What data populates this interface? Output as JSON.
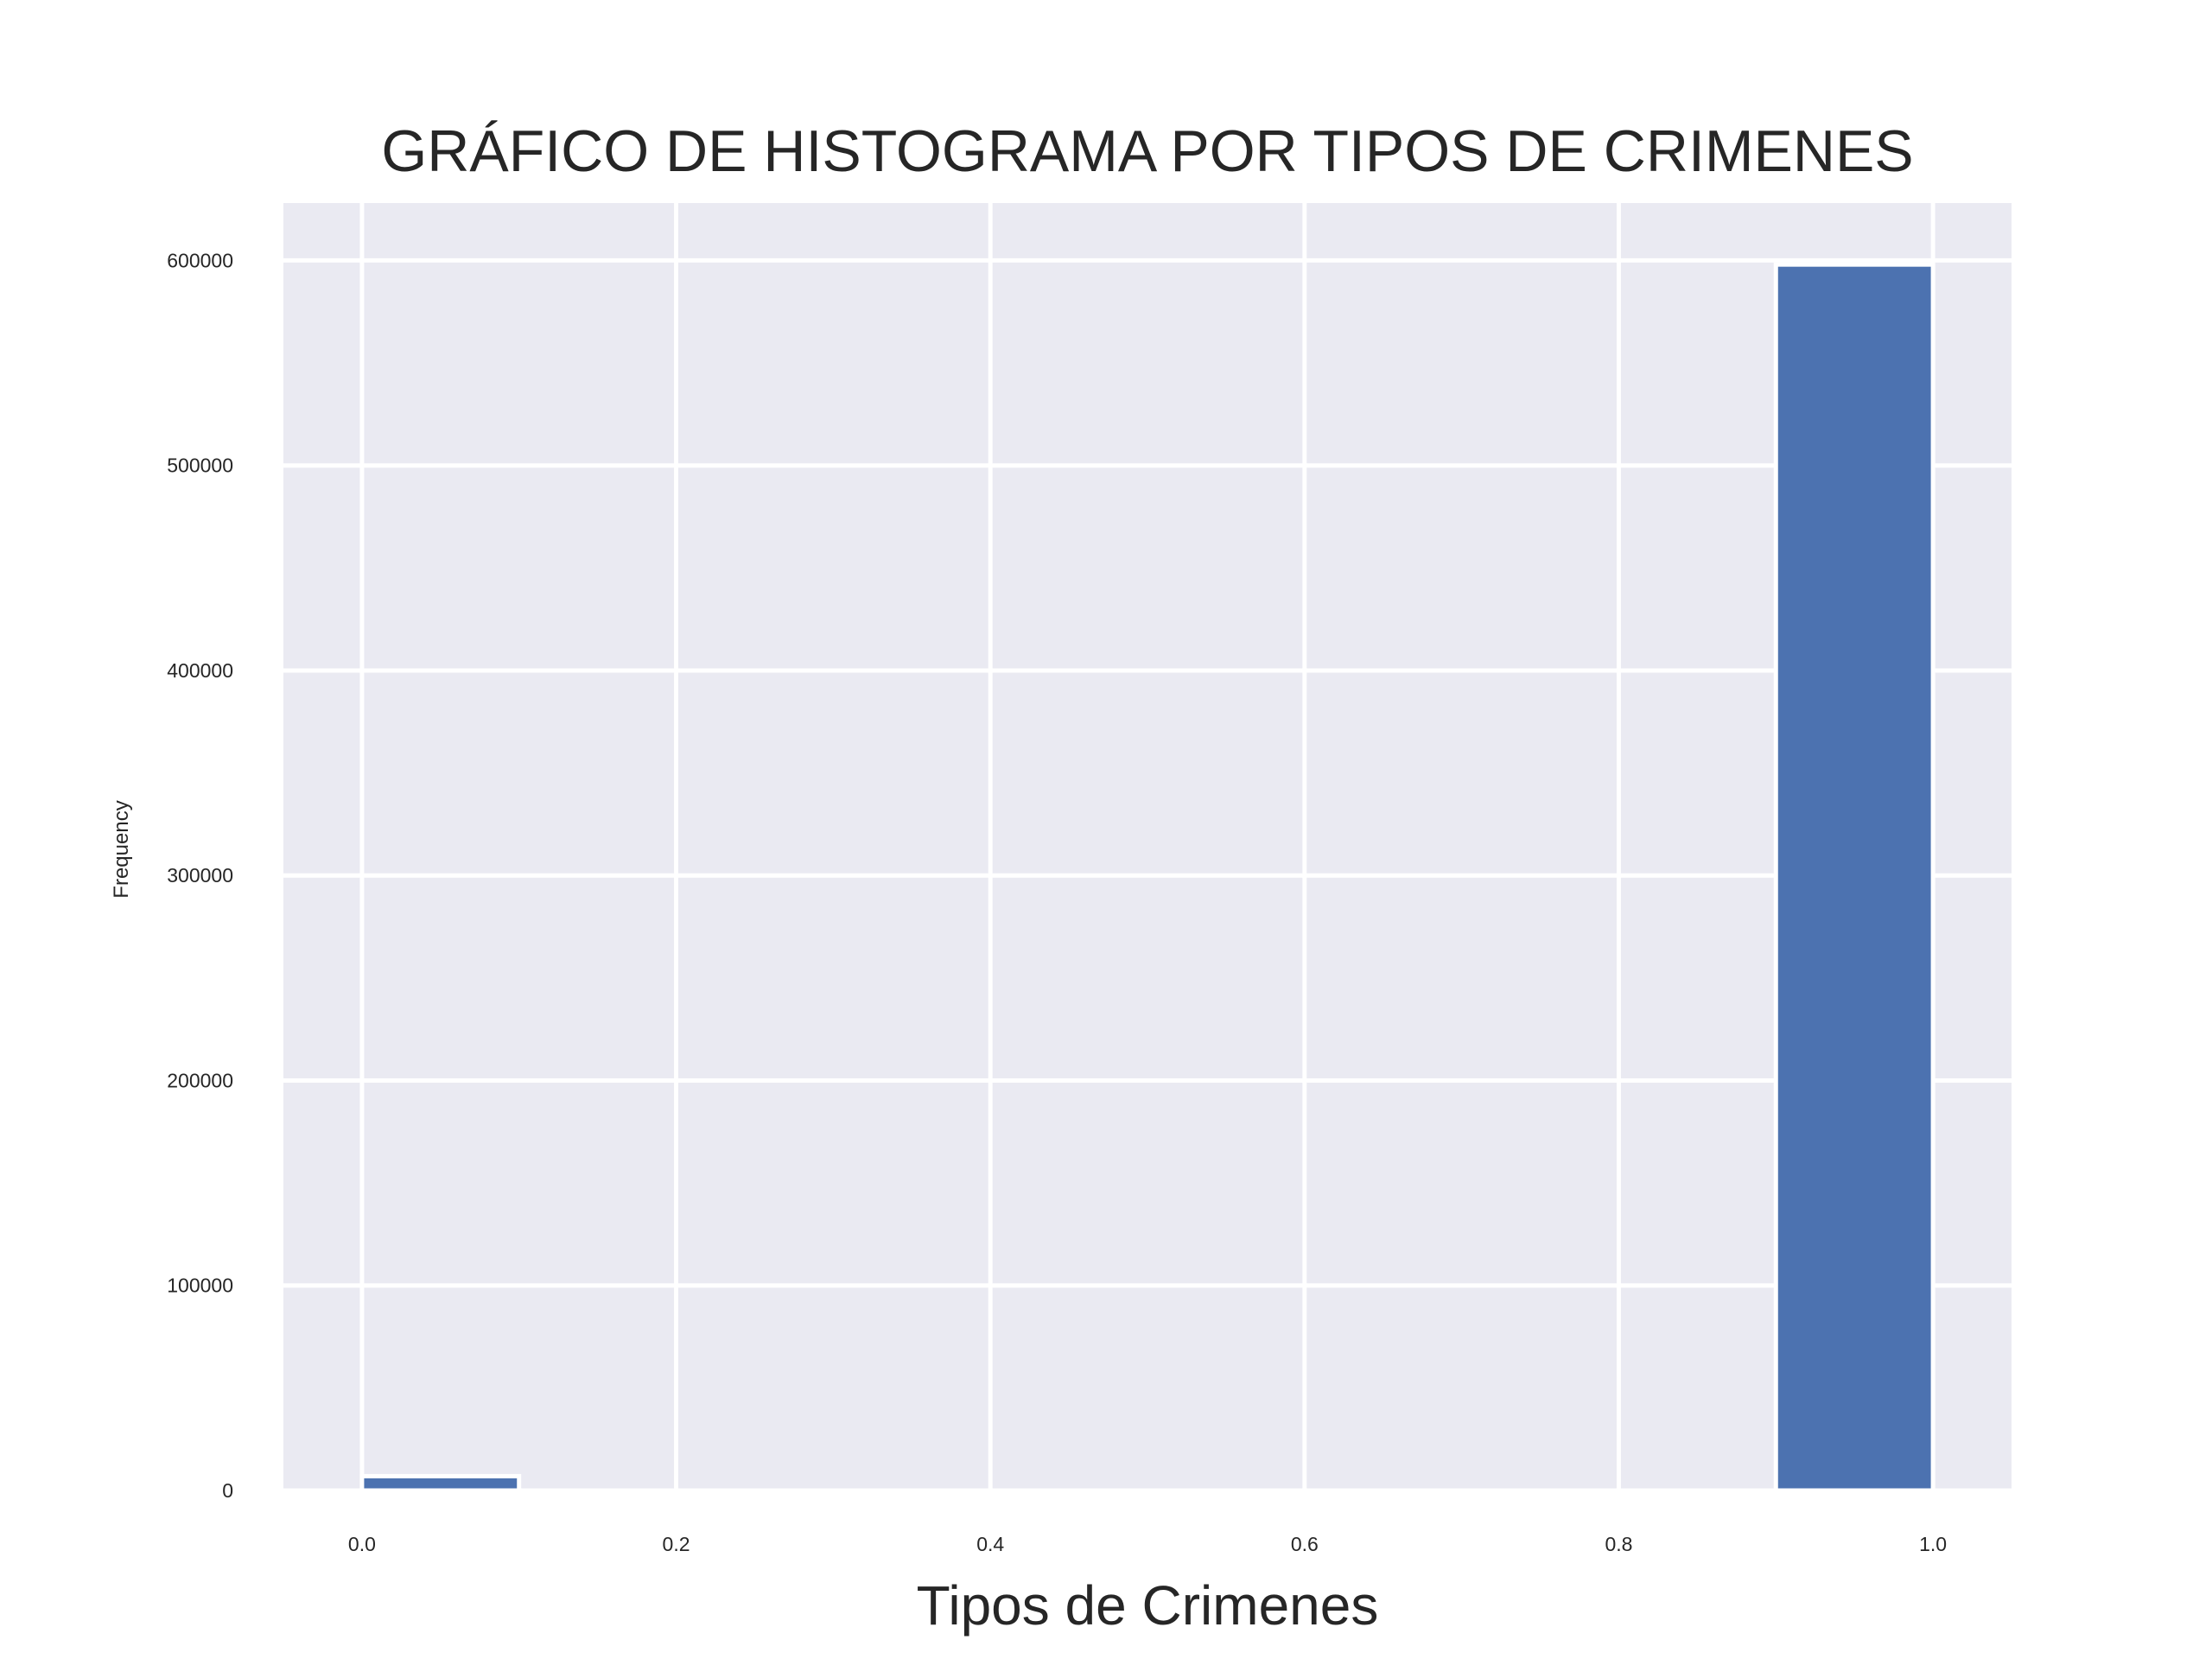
{
  "chart_data": {
    "type": "bar",
    "title": "GRÁFICO DE HISTOGRAMA POR TIPOS DE CRIMENES",
    "xlabel": "Tipos de Crimenes",
    "ylabel": "Frequency",
    "xlim": [
      -0.05,
      1.05
    ],
    "ylim": [
      0,
      628000
    ],
    "xticks": [
      "0.0",
      "0.2",
      "0.4",
      "0.6",
      "0.8",
      "1.0"
    ],
    "yticks": [
      "0",
      "100000",
      "200000",
      "300000",
      "400000",
      "500000",
      "600000"
    ],
    "bins": [
      {
        "x0": 0.0,
        "x1": 0.1,
        "value": 7000
      },
      {
        "x0": 0.1,
        "x1": 0.2,
        "value": 0
      },
      {
        "x0": 0.2,
        "x1": 0.3,
        "value": 0
      },
      {
        "x0": 0.3,
        "x1": 0.4,
        "value": 0
      },
      {
        "x0": 0.4,
        "x1": 0.5,
        "value": 0
      },
      {
        "x0": 0.5,
        "x1": 0.6,
        "value": 0
      },
      {
        "x0": 0.6,
        "x1": 0.7,
        "value": 0
      },
      {
        "x0": 0.7,
        "x1": 0.8,
        "value": 0
      },
      {
        "x0": 0.8,
        "x1": 0.9,
        "value": 0
      },
      {
        "x0": 0.9,
        "x1": 1.0,
        "value": 598000
      }
    ],
    "grid": true,
    "colors": {
      "background": "#eaeaf2",
      "bar": "#4c72b0",
      "grid": "#ffffff",
      "text": "#262626"
    }
  }
}
